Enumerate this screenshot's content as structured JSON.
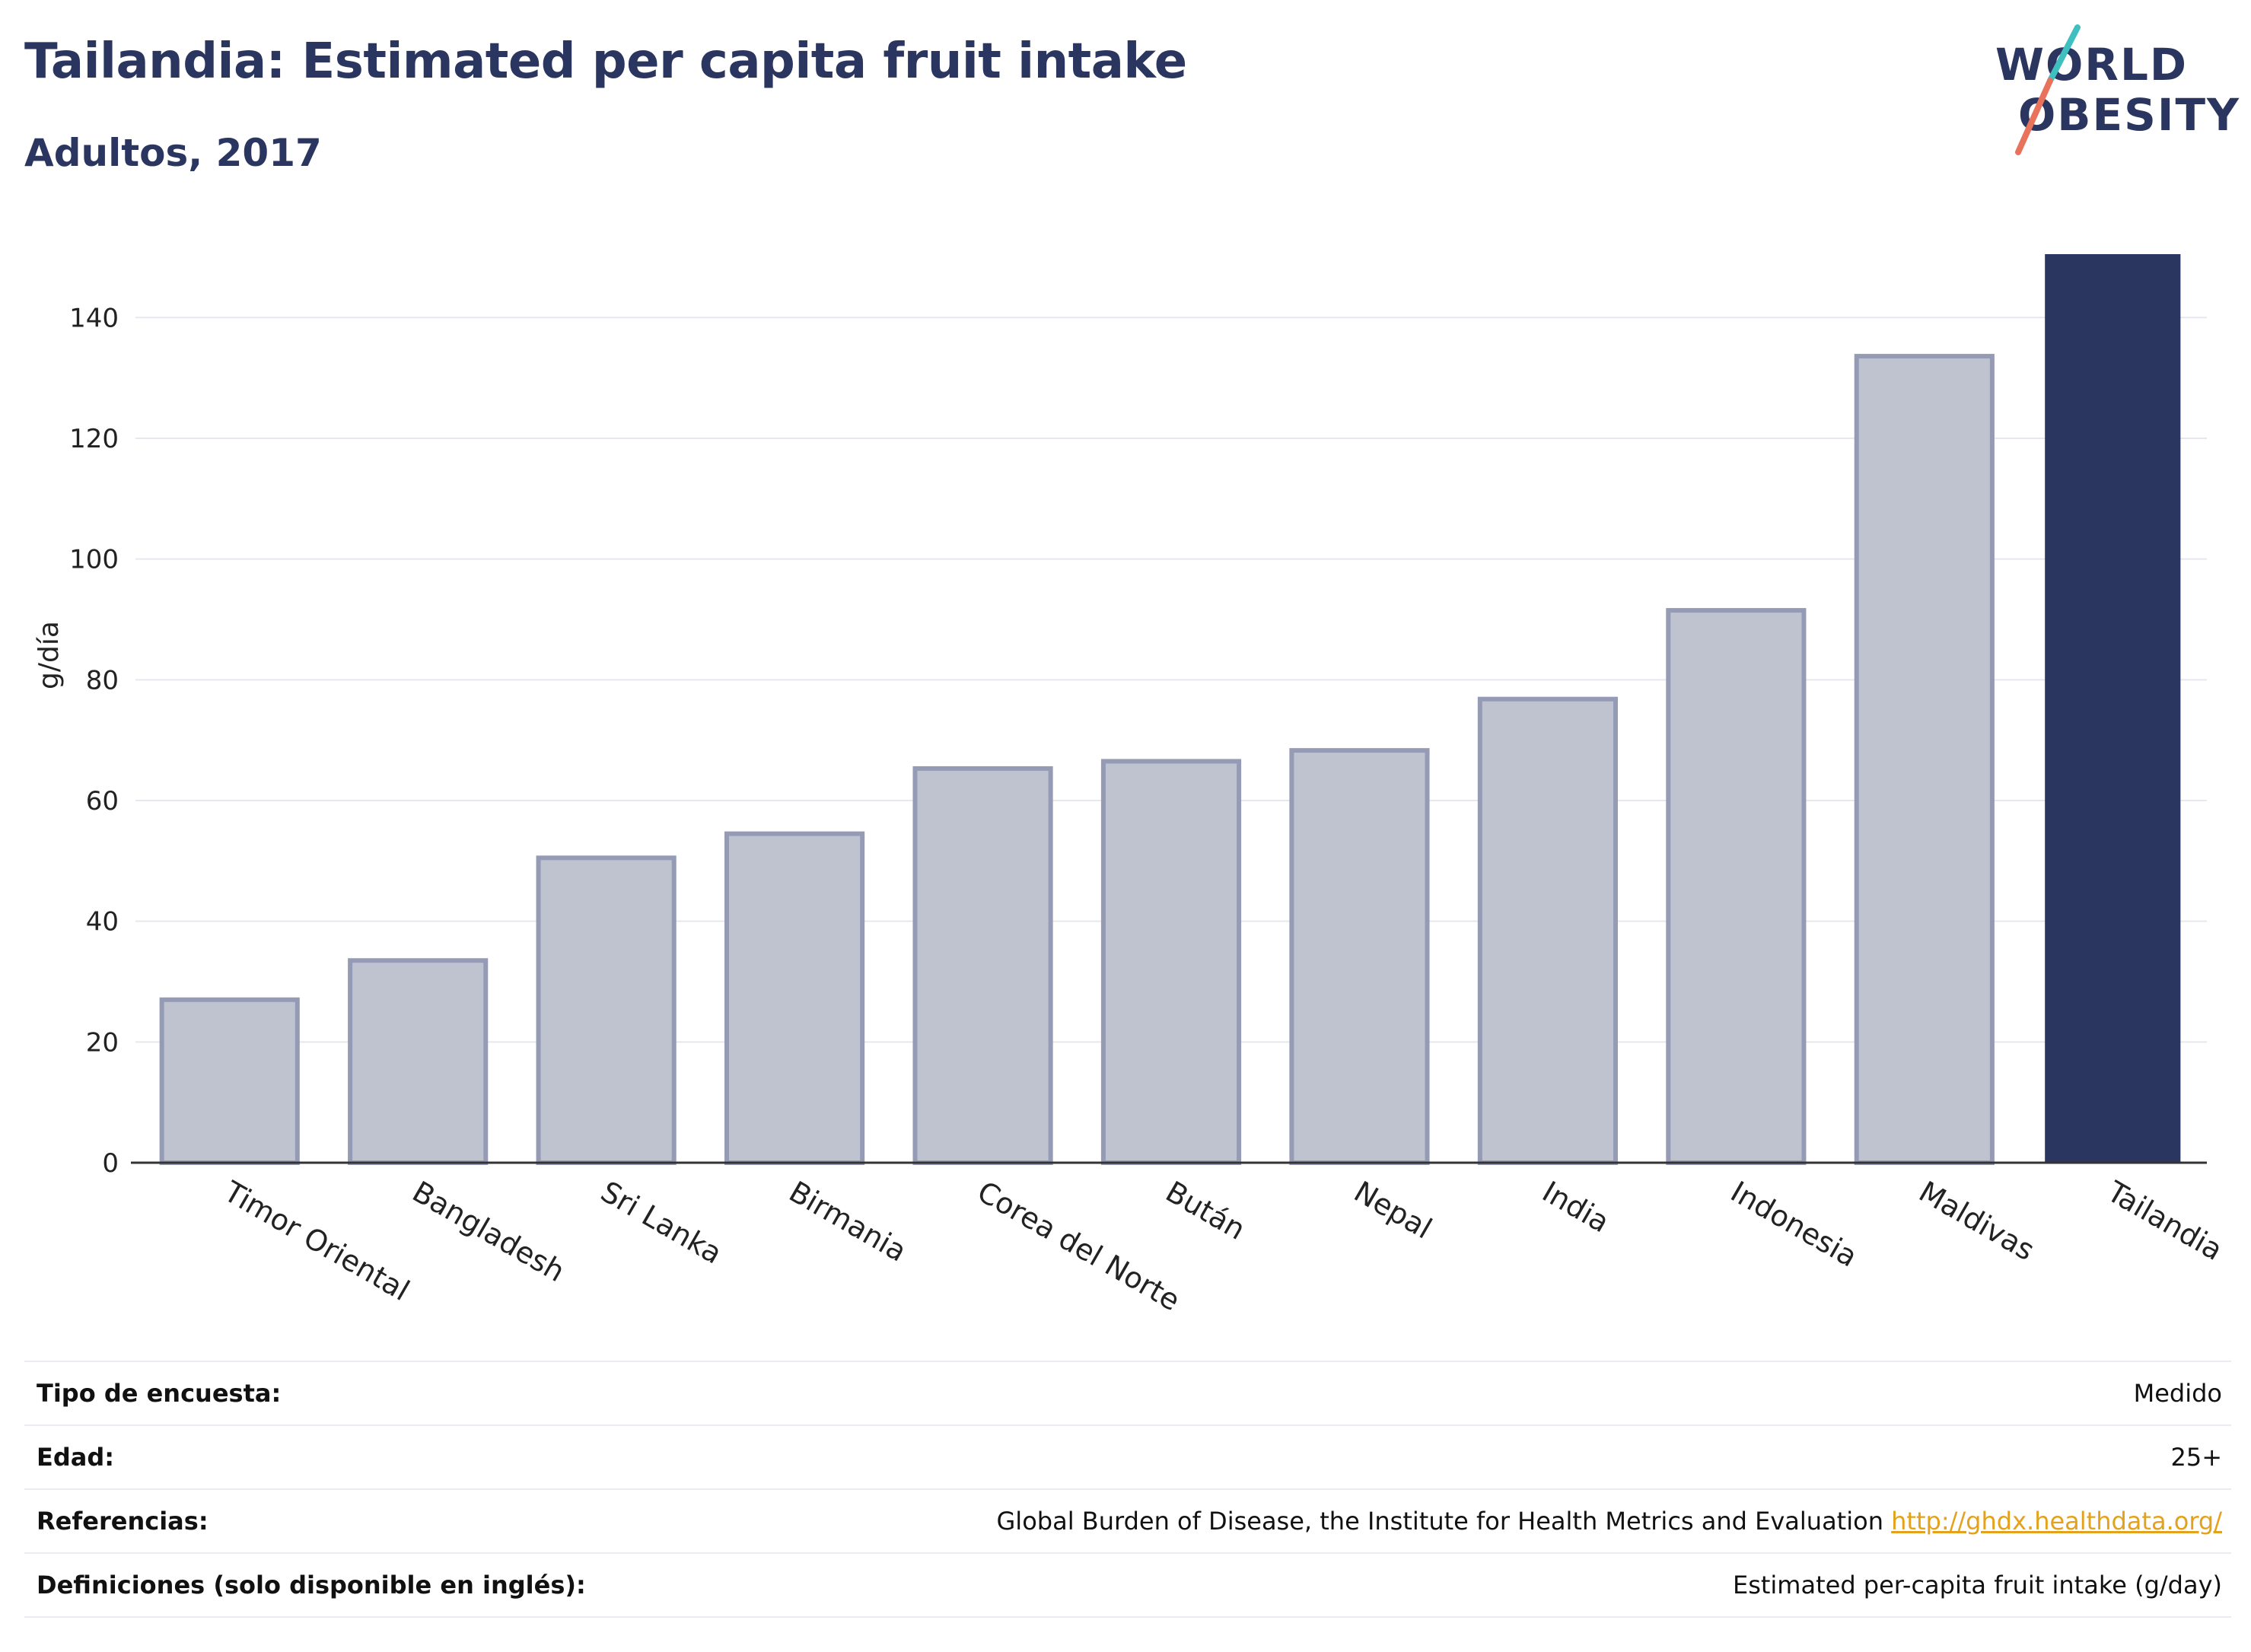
{
  "header": {
    "title": "Tailandia: Estimated per capita fruit intake",
    "subtitle": "Adultos, 2017"
  },
  "logo": {
    "line1": "WORLD",
    "line2": "OBESITY",
    "slash_colors": [
      "#3fbfbf",
      "#e8735a"
    ]
  },
  "chart_data": {
    "type": "bar",
    "categories": [
      "Timor Oriental",
      "Bangladesh",
      "Sri Lanka",
      "Birmania",
      "Corea del Norte",
      "Bután",
      "Nepal",
      "India",
      "Indonesia",
      "Maldivas",
      "Tailandia"
    ],
    "values": [
      27,
      33.5,
      50.5,
      54.5,
      65.3,
      66.5,
      68.3,
      76.8,
      91.5,
      133.6,
      150.5
    ],
    "highlight": "Tailandia",
    "title": "",
    "xlabel": "",
    "ylabel": "g/día",
    "ylim": [
      0,
      150.5
    ],
    "yticks": [
      0,
      20,
      40,
      60,
      80,
      100,
      120,
      140
    ],
    "grid": true,
    "colors": {
      "bar": "#bfc3d0",
      "bar_edge": "#959bb4",
      "highlight": "#2a365f",
      "grid": "#e6e8ee",
      "axis": "#333333"
    }
  },
  "meta": [
    {
      "label": "Tipo de encuesta:",
      "value": "Medido"
    },
    {
      "label": "Edad:",
      "value": "25+"
    },
    {
      "label": "Referencias:",
      "value": "Global Burden of Disease, the Institute for Health Metrics and Evaluation",
      "link": "http://ghdx.healthdata.org/"
    },
    {
      "label": "Definiciones (solo disponible en inglés):",
      "value": "Estimated per-capita fruit intake (g/day)"
    }
  ]
}
